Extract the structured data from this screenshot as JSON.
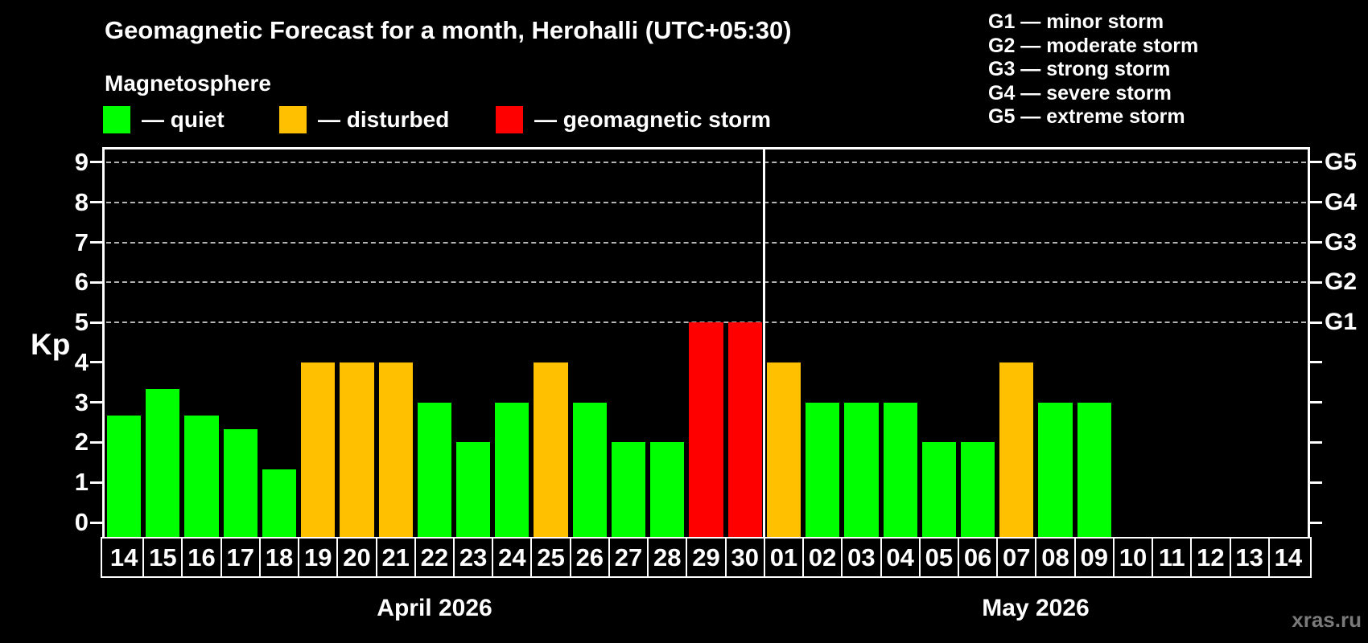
{
  "title": "Geomagnetic Forecast for a month, Herohalli (UTC+05:30)",
  "subtitle": "Magnetosphere",
  "legend": {
    "items": [
      {
        "status": "quiet",
        "label": "— quiet",
        "color": "#00ff00"
      },
      {
        "status": "disturbed",
        "label": "— disturbed",
        "color": "#ffc000"
      },
      {
        "status": "storm",
        "label": "— geomagnetic storm",
        "color": "#ff0000"
      }
    ]
  },
  "g_scale_legend": [
    "G1 — minor storm",
    "G2 — moderate storm",
    "G3 — strong storm",
    "G4 — severe storm",
    "G5 — extreme storm"
  ],
  "watermark": "xras.ru",
  "chart_data": {
    "type": "bar",
    "title": "Geomagnetic Forecast for a month, Herohalli (UTC+05:30)",
    "ylabel": "Kp",
    "ylim": [
      0,
      9
    ],
    "y_ticks": [
      0,
      1,
      2,
      3,
      4,
      5,
      6,
      7,
      8,
      9
    ],
    "gridlines_kp": [
      5,
      6,
      7,
      8,
      9
    ],
    "grid_style": "dashed",
    "grid_color": "#b4b4b4",
    "axis_color": "#ffffff",
    "right_axis": [
      {
        "kp": 5,
        "label": "G1"
      },
      {
        "kp": 6,
        "label": "G2"
      },
      {
        "kp": 7,
        "label": "G3"
      },
      {
        "kp": 8,
        "label": "G4"
      },
      {
        "kp": 9,
        "label": "G5"
      }
    ],
    "months": [
      {
        "label": "April 2026",
        "days": 17
      },
      {
        "label": "May 2026",
        "days": 14
      }
    ],
    "categories": [
      "14",
      "15",
      "16",
      "17",
      "18",
      "19",
      "20",
      "21",
      "22",
      "23",
      "24",
      "25",
      "26",
      "27",
      "28",
      "29",
      "30",
      "01",
      "02",
      "03",
      "04",
      "05",
      "06",
      "07",
      "08",
      "09",
      "10",
      "11",
      "12",
      "13",
      "14"
    ],
    "values": [
      2.67,
      3.33,
      2.67,
      2.33,
      1.33,
      4,
      4,
      4,
      3,
      2,
      3,
      4,
      3,
      2,
      2,
      5,
      5,
      4,
      3,
      3,
      3,
      2,
      2,
      4,
      3,
      3,
      null,
      null,
      null,
      null,
      null
    ],
    "statuses": [
      "quiet",
      "quiet",
      "quiet",
      "quiet",
      "quiet",
      "disturbed",
      "disturbed",
      "disturbed",
      "quiet",
      "quiet",
      "quiet",
      "disturbed",
      "quiet",
      "quiet",
      "quiet",
      "storm",
      "storm",
      "disturbed",
      "quiet",
      "quiet",
      "quiet",
      "quiet",
      "quiet",
      "disturbed",
      "quiet",
      "quiet",
      null,
      null,
      null,
      null,
      null
    ]
  }
}
